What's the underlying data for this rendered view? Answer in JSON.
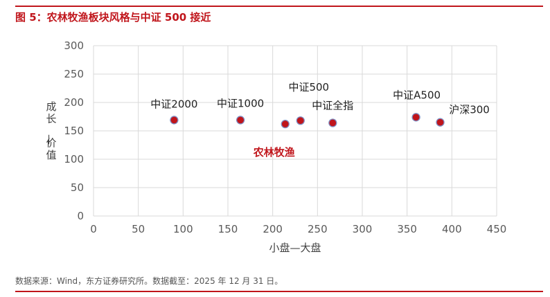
{
  "figure": {
    "title": "图 5：农林牧渔板块风格与中证 500 接近",
    "source": "数据来源：Wind，东方证券研究所。数据截至：2025 年 12 月 31 日。"
  },
  "chart_data": {
    "type": "scatter",
    "title": "",
    "xlabel": "小盘—大盘",
    "ylabel": "成长—价值",
    "xlim": [
      0,
      450
    ],
    "ylim": [
      0,
      300
    ],
    "xticks": [
      "0",
      "50",
      "100",
      "150",
      "200",
      "250",
      "300",
      "350",
      "400",
      "450"
    ],
    "yticks": [
      "0",
      "50",
      "100",
      "150",
      "200",
      "250",
      "300"
    ],
    "grid": true,
    "legend": "none",
    "marker_color": "#c0151b",
    "marker_edge": "#7f8fc4",
    "highlight_color": "#c0151b",
    "points": [
      {
        "label": "中证2000",
        "x": 90,
        "y": 169
      },
      {
        "label": "中证1000",
        "x": 164,
        "y": 169
      },
      {
        "label": "农林牧渔",
        "x": 214,
        "y": 162,
        "highlight": true
      },
      {
        "label": "中证500",
        "x": 231,
        "y": 168
      },
      {
        "label": "中证全指",
        "x": 267,
        "y": 164
      },
      {
        "label": "中证A500",
        "x": 360,
        "y": 174
      },
      {
        "label": "沪深300",
        "x": 387,
        "y": 165
      }
    ]
  }
}
